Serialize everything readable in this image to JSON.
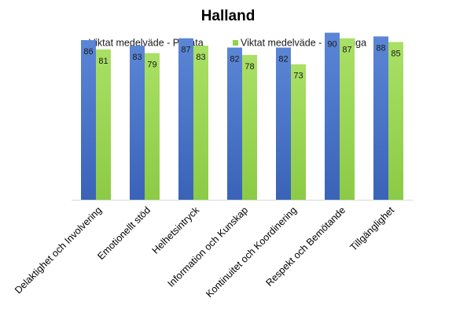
{
  "chart_data": {
    "type": "bar",
    "title": "Halland",
    "xlabel": "",
    "ylabel": "",
    "ylim": [
      0,
      100
    ],
    "grid": false,
    "legend_position": "top",
    "categories": [
      "Delaktighet och Involvering",
      "Emotionellt stöd",
      "Helhetsintryck",
      "Information och Kunskap",
      "Kontinuitet och Koordinering",
      "Respekt och Bemötande",
      "Tillgänglighet"
    ],
    "series": [
      {
        "name": "Viktat medelväde - Privata",
        "color": "#4472C4",
        "values": [
          86,
          83,
          87,
          82,
          82,
          90,
          88
        ]
      },
      {
        "name": "Viktat medelväde - Offentliga",
        "color": "#92D050",
        "values": [
          81,
          79,
          83,
          78,
          73,
          87,
          85
        ]
      }
    ]
  }
}
